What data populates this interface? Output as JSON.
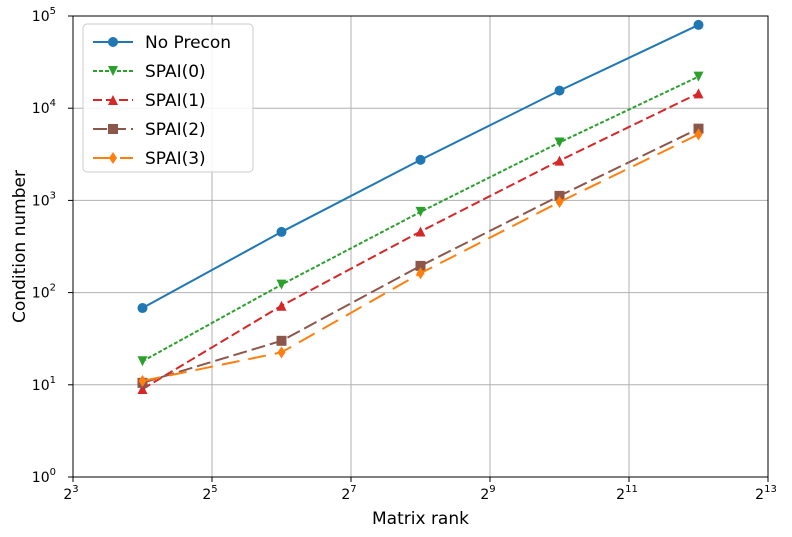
{
  "chart_data": {
    "type": "line",
    "xscale": "log2",
    "yscale": "log10",
    "xlabel": "Matrix rank",
    "ylabel": "Condition number",
    "x_exponent_range": [
      3,
      13
    ],
    "y_exponent_range": [
      0,
      5
    ],
    "x_tick_exponents": [
      3,
      5,
      7,
      9,
      11,
      13
    ],
    "y_tick_exponents": [
      0,
      1,
      2,
      3,
      4,
      5
    ],
    "x_tick_base": "2",
    "y_tick_base": "10",
    "grid": true,
    "legend_position": "top-left",
    "x": [
      16,
      64,
      256,
      1024,
      4096
    ],
    "series": [
      {
        "name": "No Precon",
        "color": "#1f77b4",
        "marker": "circle",
        "dash": "solid",
        "values": [
          68,
          455,
          2750,
          15500,
          80000
        ]
      },
      {
        "name": "SPAI(0)",
        "color": "#2ca02c",
        "marker": "triangle-down",
        "dash": "dotted",
        "values": [
          18,
          122,
          750,
          4250,
          22000
        ]
      },
      {
        "name": "SPAI(1)",
        "color": "#d62728",
        "marker": "triangle-up",
        "dash": "dashed",
        "values": [
          9,
          72,
          460,
          2700,
          14500
        ]
      },
      {
        "name": "SPAI(2)",
        "color": "#8c564b",
        "marker": "square",
        "dash": "long-dashed",
        "values": [
          10.5,
          30,
          195,
          1120,
          6000
        ]
      },
      {
        "name": "SPAI(3)",
        "color": "#ff7f0e",
        "marker": "diamond",
        "dash": "long-dash-gap",
        "values": [
          11,
          22.5,
          162,
          960,
          5200
        ]
      }
    ]
  }
}
